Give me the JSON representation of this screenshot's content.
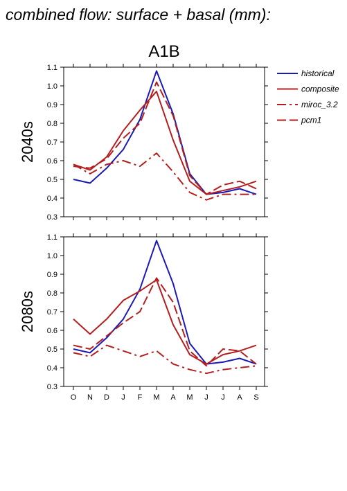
{
  "header": {
    "title": "combined flow: surface + basal (mm):"
  },
  "chart_data": [
    {
      "type": "line",
      "title": "A1B",
      "ylabel": "2040s",
      "xlabel": "",
      "categories": [
        "O",
        "N",
        "D",
        "J",
        "F",
        "M",
        "A",
        "M",
        "J",
        "J",
        "A",
        "S"
      ],
      "ylim": [
        0.3,
        1.1
      ],
      "yticks": [
        "0.3",
        "0.4",
        "0.5",
        "0.6",
        "0.7",
        "0.8",
        "0.9",
        "1.0",
        "1.1"
      ],
      "grid": false,
      "series": [
        {
          "name": "historical",
          "color": "#1a1ab4",
          "dash": "solid",
          "values": [
            0.5,
            0.48,
            0.56,
            0.66,
            0.82,
            1.08,
            0.85,
            0.53,
            0.42,
            0.43,
            0.45,
            0.42
          ]
        },
        {
          "name": "composite",
          "color": "#b41e1e",
          "dash": "solid",
          "values": [
            0.58,
            0.55,
            0.62,
            0.76,
            0.87,
            0.97,
            0.71,
            0.49,
            0.42,
            0.44,
            0.46,
            0.49
          ]
        },
        {
          "name": "miroc_3.2",
          "color": "#b41e1e",
          "dash": "dashdot",
          "values": [
            0.58,
            0.53,
            0.58,
            0.6,
            0.57,
            0.64,
            0.54,
            0.43,
            0.39,
            0.42,
            0.42,
            0.42
          ]
        },
        {
          "name": "pcm1",
          "color": "#b41e1e",
          "dash": "dashed",
          "values": [
            0.57,
            0.56,
            0.61,
            0.72,
            0.8,
            1.02,
            0.84,
            0.52,
            0.42,
            0.47,
            0.49,
            0.45
          ]
        }
      ]
    },
    {
      "type": "line",
      "title": "",
      "ylabel": "2080s",
      "xlabel": "",
      "categories": [
        "O",
        "N",
        "D",
        "J",
        "F",
        "M",
        "A",
        "M",
        "J",
        "J",
        "A",
        "S"
      ],
      "ylim": [
        0.3,
        1.1
      ],
      "yticks": [
        "0.3",
        "0.4",
        "0.5",
        "0.6",
        "0.7",
        "0.8",
        "0.9",
        "1.0",
        "1.1"
      ],
      "grid": false,
      "series": [
        {
          "name": "historical",
          "color": "#1a1ab4",
          "dash": "solid",
          "values": [
            0.5,
            0.48,
            0.56,
            0.66,
            0.82,
            1.08,
            0.85,
            0.53,
            0.42,
            0.43,
            0.45,
            0.42
          ]
        },
        {
          "name": "composite",
          "color": "#b41e1e",
          "dash": "solid",
          "values": [
            0.66,
            0.58,
            0.66,
            0.76,
            0.81,
            0.87,
            0.63,
            0.47,
            0.42,
            0.47,
            0.49,
            0.52
          ]
        },
        {
          "name": "miroc_3.2",
          "color": "#b41e1e",
          "dash": "dashdot",
          "values": [
            0.48,
            0.46,
            0.52,
            0.49,
            0.46,
            0.49,
            0.42,
            0.39,
            0.37,
            0.39,
            0.4,
            0.41
          ]
        },
        {
          "name": "pcm1",
          "color": "#b41e1e",
          "dash": "dashed",
          "values": [
            0.52,
            0.5,
            0.57,
            0.64,
            0.7,
            0.88,
            0.75,
            0.49,
            0.41,
            0.5,
            0.49,
            0.42
          ]
        }
      ]
    }
  ]
}
